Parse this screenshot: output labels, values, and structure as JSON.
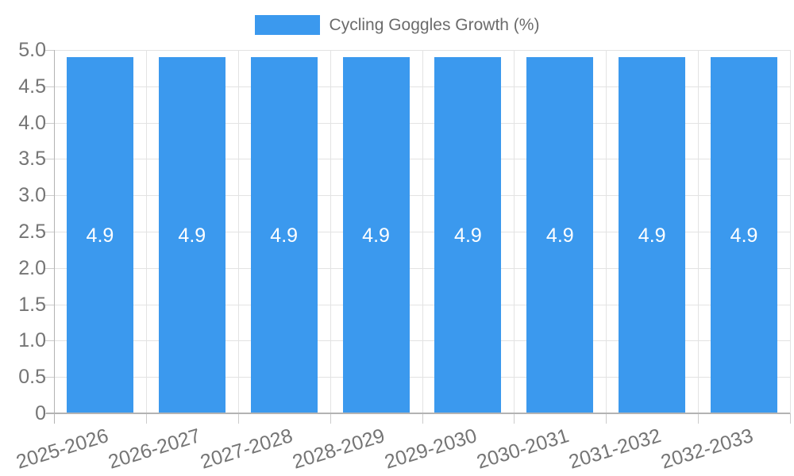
{
  "chart_data": {
    "type": "bar",
    "title": "Cycling Goggles Growth (%)",
    "legend": [
      "Cycling Goggles Growth (%)"
    ],
    "legend_position": "top-center",
    "categories": [
      "2025-2026",
      "2026-2027",
      "2027-2028",
      "2028-2029",
      "2029-2030",
      "2030-2031",
      "2031-2032",
      "2032-2033"
    ],
    "series": [
      {
        "name": "Cycling Goggles Growth (%)",
        "values": [
          4.9,
          4.9,
          4.9,
          4.9,
          4.9,
          4.9,
          4.9,
          4.9
        ]
      }
    ],
    "bar_value_labels": [
      "4.9",
      "4.9",
      "4.9",
      "4.9",
      "4.9",
      "4.9",
      "4.9",
      "4.9"
    ],
    "xlabel": "",
    "ylabel": "",
    "ylim": [
      0,
      5
    ],
    "ytick_values": [
      0,
      0.5,
      1,
      1.5,
      2,
      2.5,
      3,
      3.5,
      4,
      4.5,
      5
    ],
    "ytick_labels": [
      "0",
      "0.5",
      "1.0",
      "1.5",
      "2.0",
      "2.5",
      "3.0",
      "3.5",
      "4.0",
      "4.5",
      "5.0"
    ],
    "grid": true,
    "colors": {
      "bar": "#3b99ee",
      "gridline": "#e3e3e3",
      "axis_line": "#b3b3b3",
      "tick_mark": "#cccccc",
      "tick_text": "#757575",
      "legend_text": "#6b6b6b",
      "bar_value_text": "#ffffff",
      "background": "#ffffff"
    }
  }
}
